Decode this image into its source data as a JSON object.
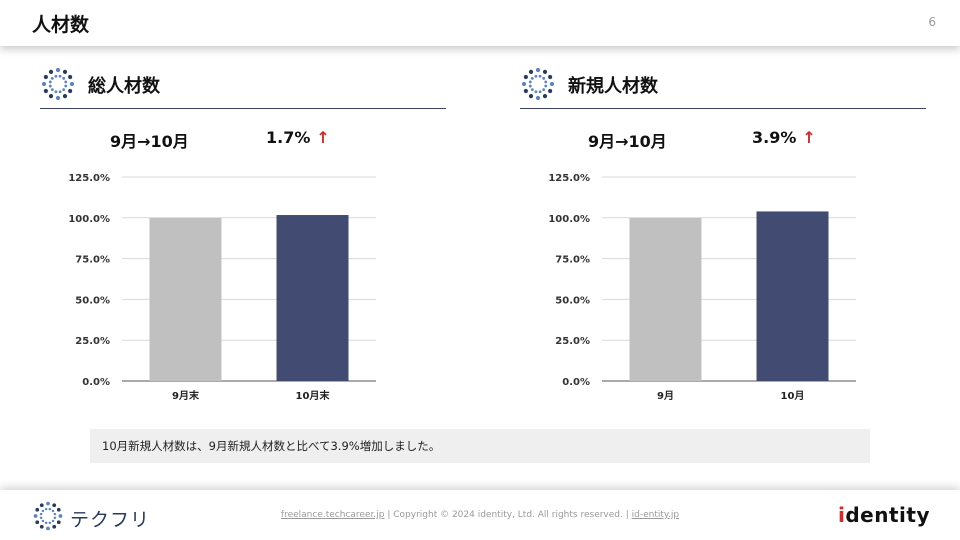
{
  "header": {
    "title": "人材数",
    "page_number": "6"
  },
  "sections": [
    {
      "label": "総人材数",
      "stat_period": "9月→10月",
      "stat_change": "1.7%",
      "chart_data": {
        "type": "bar",
        "categories": [
          "9月末",
          "10月末"
        ],
        "values": [
          100.0,
          101.7
        ],
        "colors": [
          "#c0c0c0",
          "#424b72"
        ],
        "ylim": [
          0,
          125
        ],
        "yticks": [
          "125.0%",
          "100.0%",
          "75.0%",
          "50.0%",
          "25.0%",
          "0.0%"
        ],
        "grid": true
      }
    },
    {
      "label": "新規人材数",
      "stat_period": "9月→10月",
      "stat_change": "3.9%",
      "chart_data": {
        "type": "bar",
        "categories": [
          "9月",
          "10月"
        ],
        "values": [
          100.0,
          103.9
        ],
        "colors": [
          "#c0c0c0",
          "#424b72"
        ],
        "ylim": [
          0,
          125
        ],
        "yticks": [
          "125.0%",
          "100.0%",
          "75.0%",
          "50.0%",
          "25.0%",
          "0.0%"
        ],
        "grid": true
      }
    }
  ],
  "up_arrow_glyph": "↑",
  "note": "10月新規人材数は、9月新規人材数と比べて3.9%増加しました。",
  "footer": {
    "brand_name": "テクフリ",
    "link1": "freelance.techcareer.jp",
    "separator": "|",
    "copyright": "Copyright © 2024 identity, Ltd. All rights reserved.",
    "link2": "id-entity.jp",
    "identity_logo": "identity"
  },
  "colors": {
    "accent_up": "#d12b2b",
    "bar_current": "#424b72",
    "bar_previous": "#c0c0c0",
    "rule": "#3a4366"
  }
}
